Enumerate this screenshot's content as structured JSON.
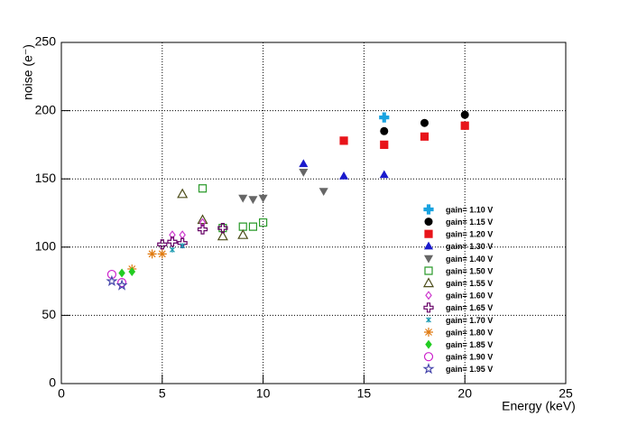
{
  "chart_data": {
    "type": "scatter",
    "x_label": "Energy (keV)",
    "y_label": "noise (e⁻)",
    "xlim": [
      0,
      25
    ],
    "ylim": [
      0,
      250
    ],
    "xticks": [
      0,
      5,
      10,
      15,
      20,
      25
    ],
    "yticks": [
      0,
      50,
      100,
      150,
      200,
      250
    ],
    "grid": true,
    "legend": "lower right",
    "series": [
      {
        "name": "gain= 1.10 V",
        "color": "#1aa3e0",
        "marker": "cross",
        "x": [
          16
        ],
        "values": [
          195
        ]
      },
      {
        "name": "gain= 1.15 V",
        "color": "#000000",
        "marker": "circle",
        "x": [
          16,
          18,
          20
        ],
        "values": [
          185,
          191,
          197
        ]
      },
      {
        "name": "gain= 1.20 V",
        "color": "#e8141a",
        "marker": "square",
        "x": [
          14,
          16,
          18,
          20
        ],
        "values": [
          178,
          175,
          181,
          189
        ]
      },
      {
        "name": "gain= 1.30 V",
        "color": "#1a1acc",
        "marker": "triangle-up",
        "x": [
          12,
          14,
          16
        ],
        "values": [
          161,
          152,
          153
        ]
      },
      {
        "name": "gain= 1.40 V",
        "color": "#666666",
        "marker": "triangle-down",
        "x": [
          9,
          9.5,
          10,
          12,
          13
        ],
        "values": [
          136,
          135,
          136,
          155,
          141
        ]
      },
      {
        "name": "gain= 1.50 V",
        "color": "#2a9a2a",
        "marker": "open-square",
        "x": [
          7,
          8,
          9,
          9.5,
          10
        ],
        "values": [
          143,
          114,
          115,
          115,
          118
        ]
      },
      {
        "name": "gain= 1.55 V",
        "color": "#4d4d1a",
        "marker": "open-triangle",
        "x": [
          6,
          7,
          8,
          9
        ],
        "values": [
          139,
          120,
          108,
          109
        ]
      },
      {
        "name": "gain= 1.60 V",
        "color": "#cc33cc",
        "marker": "open-diamond",
        "x": [
          5.5,
          6,
          7
        ],
        "values": [
          109,
          109,
          118
        ]
      },
      {
        "name": "gain= 1.65 V",
        "color": "#660066",
        "marker": "open-cross",
        "x": [
          5,
          5.5,
          6,
          7,
          8
        ],
        "values": [
          102,
          104,
          103,
          113,
          114
        ]
      },
      {
        "name": "gain= 1.70 V",
        "color": "#1a9ab0",
        "marker": "star",
        "x": [
          5.5,
          6
        ],
        "values": [
          98,
          101
        ]
      },
      {
        "name": "gain= 1.80 V",
        "color": "#e07a10",
        "marker": "asterisk",
        "x": [
          3.5,
          4.5,
          5
        ],
        "values": [
          84,
          95,
          95
        ]
      },
      {
        "name": "gain= 1.85 V",
        "color": "#22cc22",
        "marker": "diamond",
        "x": [
          3,
          3.5
        ],
        "values": [
          81,
          82
        ]
      },
      {
        "name": "gain= 1.90 V",
        "color": "#cc22cc",
        "marker": "open-circle",
        "x": [
          2.5,
          3
        ],
        "values": [
          80,
          74
        ]
      },
      {
        "name": "gain= 1.95 V",
        "color": "#4444aa",
        "marker": "open-star",
        "x": [
          2.5,
          3
        ],
        "values": [
          75,
          72
        ]
      }
    ]
  }
}
